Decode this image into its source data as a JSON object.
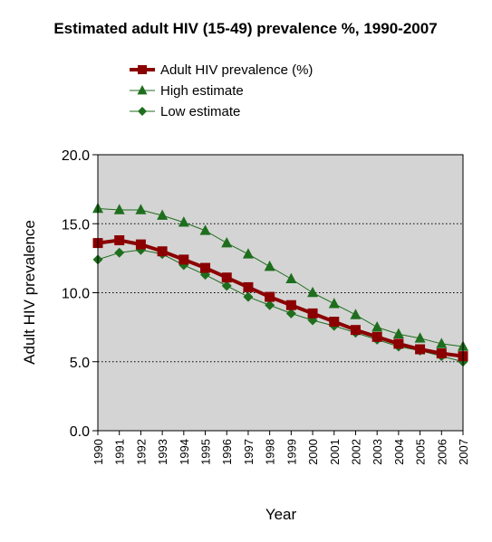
{
  "chart_data": {
    "type": "line",
    "title": "Estimated adult HIV (15-49) prevalence %, 1990-2007",
    "xlabel": "Year",
    "ylabel": "Adult HIV prevalence",
    "categories": [
      "1990",
      "1991",
      "1992",
      "1993",
      "1994",
      "1995",
      "1996",
      "1997",
      "1998",
      "1999",
      "2000",
      "2001",
      "2002",
      "2003",
      "2004",
      "2005",
      "2006",
      "2007"
    ],
    "y_ticks": [
      "0.0",
      "5.0",
      "10.0",
      "15.0",
      "20.0"
    ],
    "ylim": [
      0,
      20
    ],
    "grid": "horizontal dotted",
    "plot_background": "#d4d4d4",
    "legend_position": "top",
    "series": [
      {
        "name": "Adult HIV prevalence (%)",
        "color": "#8b0000",
        "marker": "square",
        "values": [
          13.6,
          13.8,
          13.5,
          13.0,
          12.4,
          11.8,
          11.1,
          10.4,
          9.7,
          9.1,
          8.5,
          7.9,
          7.3,
          6.8,
          6.3,
          5.9,
          5.6,
          5.4
        ]
      },
      {
        "name": "High estimate",
        "color": "#1e6e1e",
        "marker": "triangle",
        "values": [
          16.1,
          16.0,
          16.0,
          15.6,
          15.1,
          14.5,
          13.6,
          12.8,
          11.9,
          11.0,
          10.0,
          9.2,
          8.4,
          7.5,
          7.0,
          6.7,
          6.3,
          6.1
        ]
      },
      {
        "name": "Low estimate",
        "color": "#1e6e1e",
        "marker": "diamond",
        "values": [
          12.4,
          12.9,
          13.1,
          12.8,
          12.0,
          11.3,
          10.5,
          9.7,
          9.1,
          8.5,
          8.0,
          7.6,
          7.1,
          6.6,
          6.1,
          5.8,
          5.4,
          5.0
        ]
      }
    ]
  }
}
